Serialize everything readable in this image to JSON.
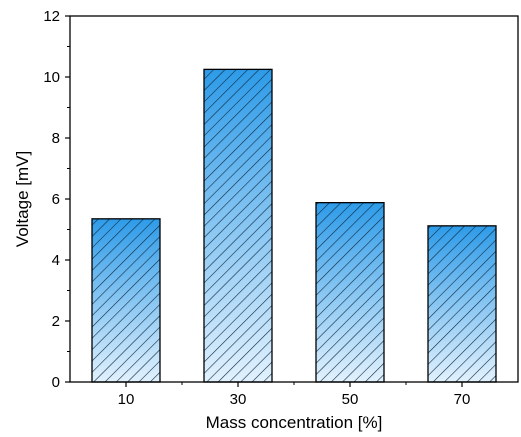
{
  "chart_data": {
    "type": "bar",
    "title": "",
    "xlabel": "Mass concentration [%]",
    "ylabel": "Voltage [mV]",
    "categories": [
      "10",
      "30",
      "50",
      "70"
    ],
    "values": [
      5.35,
      10.25,
      5.88,
      5.12
    ],
    "ylim": [
      0,
      12
    ],
    "yticks": [
      "0",
      "2",
      "4",
      "6",
      "8",
      "10",
      "12"
    ],
    "grid": false,
    "legend": "none",
    "bar_fill_top": "#2e9be8",
    "bar_fill_bottom": "#e2f1fd",
    "bar_hatch": "diagonal",
    "axis_color": "#000000"
  }
}
